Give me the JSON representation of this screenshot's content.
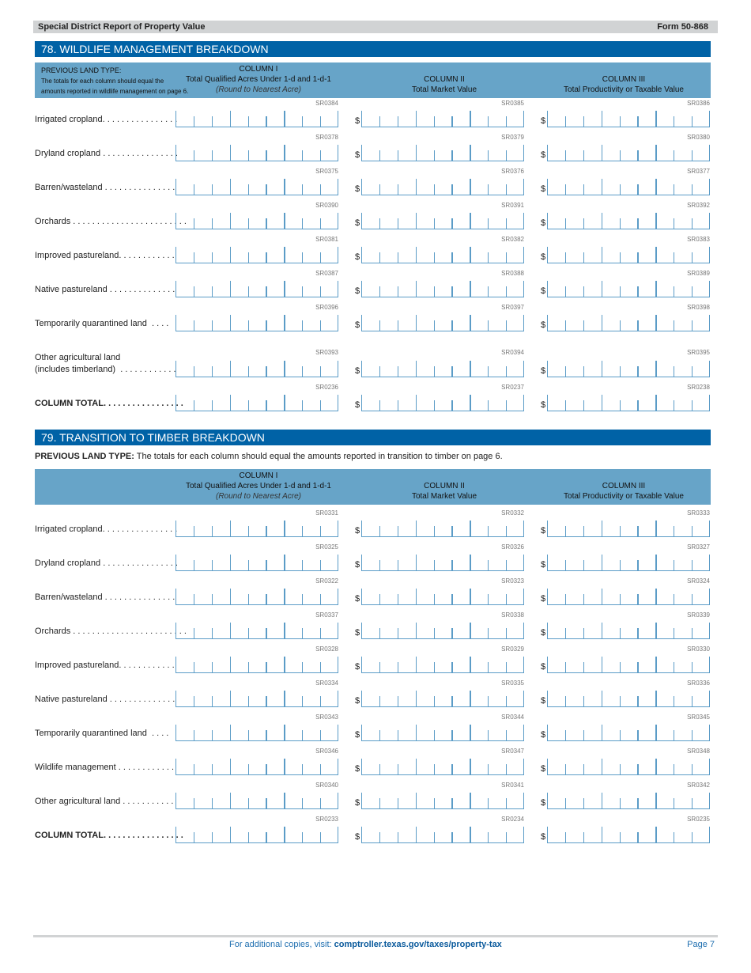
{
  "header": {
    "title": "Special District Report of Property Value",
    "form": "Form 50-868"
  },
  "colors": {
    "section_title": "#0062a6",
    "column_header": "#67a4c8",
    "box_lines": "#5b9cc7"
  },
  "columns": {
    "col1": {
      "title": "COLUMN I",
      "sub": "Total Qualified Acres Under 1-d and 1-d-1",
      "note": "(Round to Nearest Acre)"
    },
    "col2": {
      "title": "COLUMN II",
      "sub": "Total Market Value"
    },
    "col3": {
      "title": "COLUMN  III",
      "sub": "Total Productivity or Taxable Value"
    },
    "currency": "$"
  },
  "s78": {
    "title": "78. WILDLIFE MANAGEMENT BREAKDOWN",
    "plt_title": "PREVIOUS LAND TYPE:",
    "plt_line1": "The totals for each column should equal the",
    "plt_line2": "amounts reported in wildlife management on page 6.",
    "rows": [
      {
        "label": "Irrigated cropland. . . . . . . . . . . . . . . .",
        "codes": [
          "SR0384",
          "SR0385",
          "SR0386"
        ]
      },
      {
        "label": "Dryland cropland . . . . . . . . . . . . . . . .",
        "codes": [
          "SR0378",
          "SR0379",
          "SR0380"
        ]
      },
      {
        "label": "Barren/wasteland . . . . . . . . . . . . . . .",
        "codes": [
          "SR0375",
          "SR0376",
          "SR0377"
        ]
      },
      {
        "label": "Orchards . . . . . . . . . . . . . . . . . . . . . . . .",
        "codes": [
          "SR0390",
          "SR0391",
          "SR0392"
        ]
      },
      {
        "label": "Improved pastureland. . . . . . . . . . . .",
        "codes": [
          "SR0381",
          "SR0382",
          "SR0383"
        ]
      },
      {
        "label": "Native pastureland . . . . . . . . . . . . . .",
        "codes": [
          "SR0387",
          "SR0388",
          "SR0389"
        ]
      },
      {
        "label": "Temporarily quarantined land  . . . .",
        "codes": [
          "SR0396",
          "SR0397",
          "SR0398"
        ]
      },
      {
        "label": "Other agricultural land\n(includes timberland)  . . . . . . . . . . . .",
        "codes": [
          "SR0393",
          "SR0394",
          "SR0395"
        ],
        "tall": true
      },
      {
        "label": "COLUMN TOTAL. . . . . . . . . . . . . . . . .",
        "codes": [
          "SR0236",
          "SR0237",
          "SR0238"
        ],
        "bold": true
      }
    ]
  },
  "s79": {
    "title": "79. TRANSITION TO TIMBER BREAKDOWN",
    "note_bold": "PREVIOUS LAND TYPE:",
    "note": " The totals for each column should equal the amounts reported in transition to timber on page 6.",
    "rows": [
      {
        "label": "Irrigated cropland. . . . . . . . . . . . . . . .",
        "codes": [
          "SR0331",
          "SR0332",
          "SR0333"
        ]
      },
      {
        "label": "Dryland cropland . . . . . . . . . . . . . . . .",
        "codes": [
          "SR0325",
          "SR0326",
          "SR0327"
        ]
      },
      {
        "label": "Barren/wasteland . . . . . . . . . . . . . . .",
        "codes": [
          "SR0322",
          "SR0323",
          "SR0324"
        ]
      },
      {
        "label": "Orchards . . . . . . . . . . . . . . . . . . . . . . . .",
        "codes": [
          "SR0337",
          "SR0338",
          "SR0339"
        ]
      },
      {
        "label": "Improved pastureland. . . . . . . . . . . .",
        "codes": [
          "SR0328",
          "SR0329",
          "SR0330"
        ]
      },
      {
        "label": "Native pastureland . . . . . . . . . . . . . .",
        "codes": [
          "SR0334",
          "SR0335",
          "SR0336"
        ]
      },
      {
        "label": "Temporarily quarantined land  . . . .",
        "codes": [
          "SR0343",
          "SR0344",
          "SR0345"
        ]
      },
      {
        "label": "Wildlife management . . . . . . . . . . . .",
        "codes": [
          "SR0346",
          "SR0347",
          "SR0348"
        ]
      },
      {
        "label": "Other agricultural land . . . . . . . . . . .",
        "codes": [
          "SR0340",
          "SR0341",
          "SR0342"
        ]
      },
      {
        "label": "COLUMN TOTAL. . . . . . . . . . . . . . . . .",
        "codes": [
          "SR0233",
          "SR0234",
          "SR0235"
        ],
        "bold": true
      }
    ]
  },
  "footer": {
    "text": "For additional copies, visit: ",
    "link": "comptroller.texas.gov/taxes/property-tax",
    "page": "Page 7"
  }
}
